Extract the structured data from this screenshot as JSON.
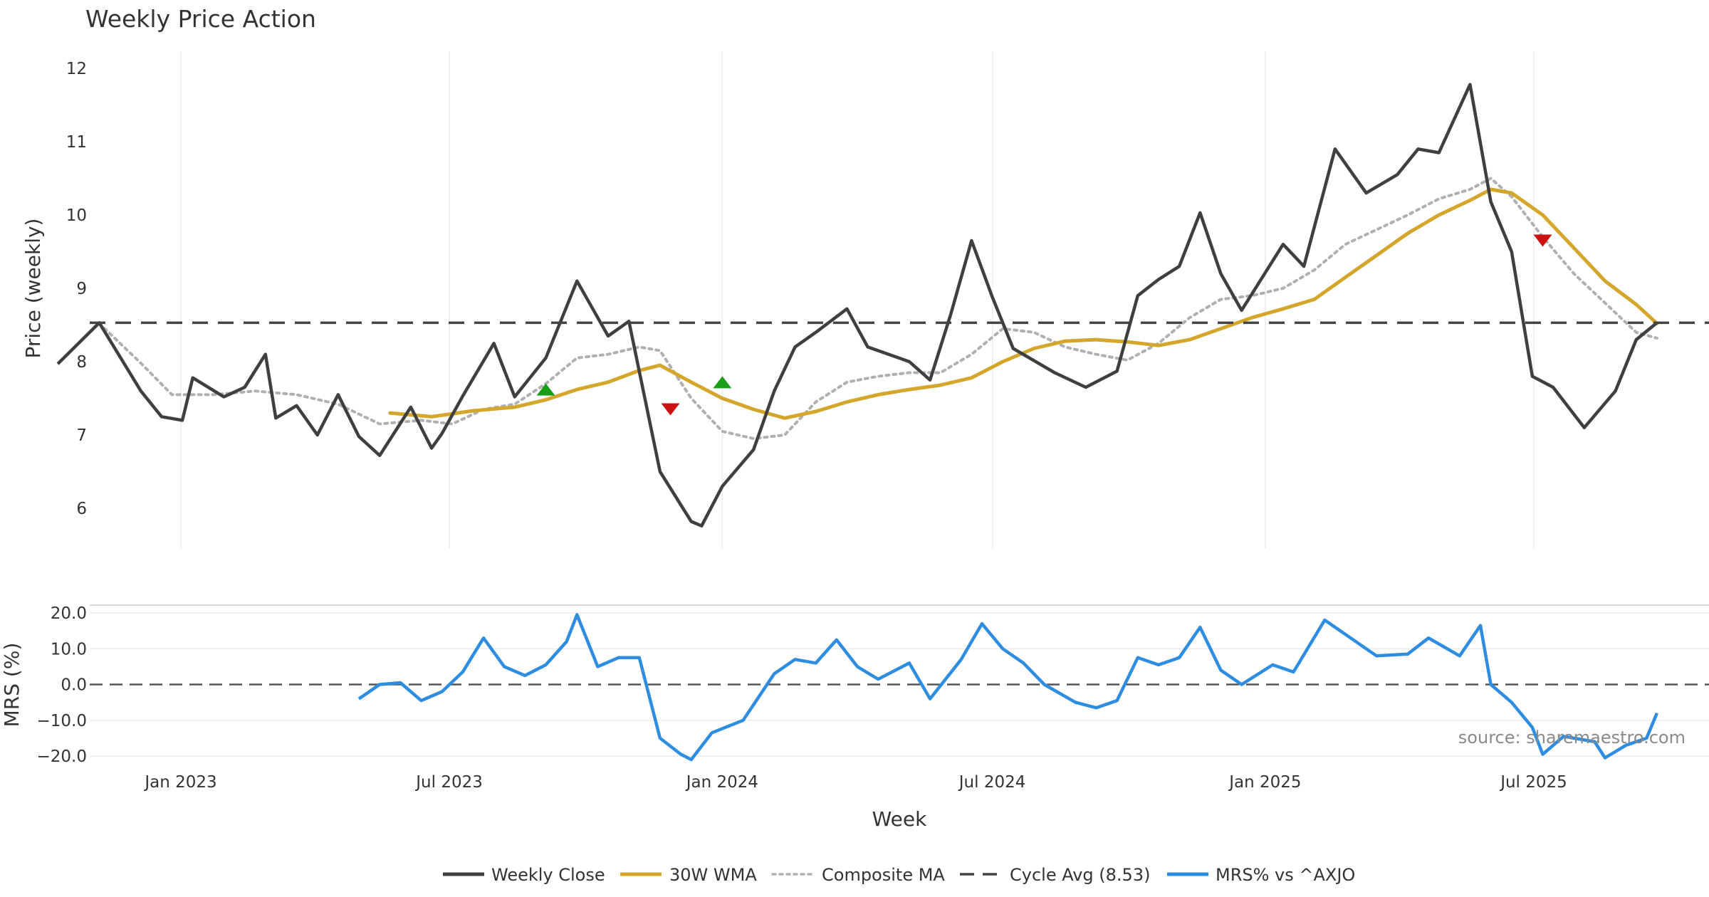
{
  "chart_data": {
    "title": "Weekly Price Action",
    "source": "source: sharemaestro.com",
    "xlabel": "Week",
    "x_ticks": [
      "Jan 2023",
      "Jul 2023",
      "Jan 2024",
      "Jul 2024",
      "Jan 2025",
      "Jul 2025"
    ],
    "x_range": [
      "2022-10-10",
      "2025-09-22"
    ],
    "price_panel": {
      "type": "line",
      "ylabel": "Price (weekly)",
      "ylim": [
        5.4,
        12.3
      ],
      "y_ticks": [
        6,
        7,
        8,
        9,
        10,
        11,
        12
      ],
      "series": [
        {
          "name": "Weekly Close",
          "color": "#3f3f3f",
          "points": [
            [
              "2022-10-10",
              7.97
            ],
            [
              "2022-11-07",
              8.53
            ],
            [
              "2022-12-05",
              7.6
            ],
            [
              "2022-12-19",
              7.25
            ],
            [
              "2023-01-02",
              7.2
            ],
            [
              "2023-01-09",
              7.78
            ],
            [
              "2023-01-30",
              7.52
            ],
            [
              "2023-02-13",
              7.65
            ],
            [
              "2023-02-27",
              8.1
            ],
            [
              "2023-03-06",
              7.23
            ],
            [
              "2023-03-20",
              7.4
            ],
            [
              "2023-04-03",
              7.0
            ],
            [
              "2023-04-17",
              7.55
            ],
            [
              "2023-05-01",
              6.98
            ],
            [
              "2023-05-15",
              6.72
            ],
            [
              "2023-06-05",
              7.38
            ],
            [
              "2023-06-19",
              6.82
            ],
            [
              "2023-06-26",
              7.02
            ],
            [
              "2023-07-10",
              7.53
            ],
            [
              "2023-07-31",
              8.25
            ],
            [
              "2023-08-14",
              7.52
            ],
            [
              "2023-09-04",
              8.05
            ],
            [
              "2023-09-25",
              9.1
            ],
            [
              "2023-10-16",
              8.35
            ],
            [
              "2023-10-30",
              8.55
            ],
            [
              "2023-11-20",
              6.5
            ],
            [
              "2023-12-11",
              5.82
            ],
            [
              "2023-12-18",
              5.76
            ],
            [
              "2024-01-01",
              6.3
            ],
            [
              "2024-01-22",
              6.8
            ],
            [
              "2024-02-05",
              7.6
            ],
            [
              "2024-02-19",
              8.2
            ],
            [
              "2024-03-04",
              8.4
            ],
            [
              "2024-03-25",
              8.72
            ],
            [
              "2024-04-08",
              8.2
            ],
            [
              "2024-05-06",
              8.0
            ],
            [
              "2024-05-20",
              7.75
            ],
            [
              "2024-06-03",
              8.65
            ],
            [
              "2024-06-17",
              9.65
            ],
            [
              "2024-07-01",
              8.88
            ],
            [
              "2024-07-15",
              8.18
            ],
            [
              "2024-08-12",
              7.85
            ],
            [
              "2024-09-02",
              7.65
            ],
            [
              "2024-09-23",
              7.87
            ],
            [
              "2024-10-07",
              8.9
            ],
            [
              "2024-10-21",
              9.12
            ],
            [
              "2024-11-04",
              9.3
            ],
            [
              "2024-11-18",
              10.03
            ],
            [
              "2024-12-02",
              9.2
            ],
            [
              "2024-12-16",
              8.7
            ],
            [
              "2025-01-13",
              9.6
            ],
            [
              "2025-01-27",
              9.3
            ],
            [
              "2025-02-17",
              10.9
            ],
            [
              "2025-03-10",
              10.3
            ],
            [
              "2025-03-31",
              10.55
            ],
            [
              "2025-04-14",
              10.9
            ],
            [
              "2025-04-28",
              10.85
            ],
            [
              "2025-05-19",
              11.78
            ],
            [
              "2025-06-02",
              10.18
            ],
            [
              "2025-06-16",
              9.5
            ],
            [
              "2025-06-30",
              7.8
            ],
            [
              "2025-07-14",
              7.65
            ],
            [
              "2025-08-04",
              7.1
            ],
            [
              "2025-08-25",
              7.6
            ],
            [
              "2025-09-08",
              8.3
            ],
            [
              "2025-09-22",
              8.53
            ]
          ]
        },
        {
          "name": "30W WMA",
          "color": "#d4a72c",
          "points": [
            [
              "2023-05-22",
              7.3
            ],
            [
              "2023-06-19",
              7.25
            ],
            [
              "2023-07-17",
              7.33
            ],
            [
              "2023-08-14",
              7.38
            ],
            [
              "2023-09-04",
              7.48
            ],
            [
              "2023-09-25",
              7.62
            ],
            [
              "2023-10-16",
              7.72
            ],
            [
              "2023-11-06",
              7.88
            ],
            [
              "2023-11-20",
              7.95
            ],
            [
              "2023-12-11",
              7.72
            ],
            [
              "2024-01-01",
              7.5
            ],
            [
              "2024-01-22",
              7.35
            ],
            [
              "2024-02-12",
              7.23
            ],
            [
              "2024-03-04",
              7.32
            ],
            [
              "2024-03-25",
              7.45
            ],
            [
              "2024-04-15",
              7.55
            ],
            [
              "2024-05-06",
              7.62
            ],
            [
              "2024-05-27",
              7.68
            ],
            [
              "2024-06-17",
              7.78
            ],
            [
              "2024-07-08",
              8.0
            ],
            [
              "2024-07-29",
              8.18
            ],
            [
              "2024-08-19",
              8.28
            ],
            [
              "2024-09-09",
              8.3
            ],
            [
              "2024-09-30",
              8.27
            ],
            [
              "2024-10-21",
              8.22
            ],
            [
              "2024-11-11",
              8.3
            ],
            [
              "2024-12-02",
              8.45
            ],
            [
              "2024-12-23",
              8.6
            ],
            [
              "2025-01-13",
              8.72
            ],
            [
              "2025-02-03",
              8.85
            ],
            [
              "2025-02-24",
              9.15
            ],
            [
              "2025-03-17",
              9.45
            ],
            [
              "2025-04-07",
              9.75
            ],
            [
              "2025-04-28",
              10.0
            ],
            [
              "2025-05-19",
              10.2
            ],
            [
              "2025-06-02",
              10.35
            ],
            [
              "2025-06-16",
              10.3
            ],
            [
              "2025-07-07",
              10.0
            ],
            [
              "2025-07-28",
              9.55
            ],
            [
              "2025-08-18",
              9.1
            ],
            [
              "2025-09-08",
              8.78
            ],
            [
              "2025-09-22",
              8.52
            ]
          ]
        },
        {
          "name": "Composite MA",
          "color": "#b0b0b0",
          "points": [
            [
              "2022-11-07",
              8.52
            ],
            [
              "2022-12-05",
              7.98
            ],
            [
              "2022-12-26",
              7.55
            ],
            [
              "2023-01-23",
              7.55
            ],
            [
              "2023-02-20",
              7.6
            ],
            [
              "2023-03-20",
              7.55
            ],
            [
              "2023-04-17",
              7.42
            ],
            [
              "2023-05-15",
              7.15
            ],
            [
              "2023-06-12",
              7.2
            ],
            [
              "2023-07-03",
              7.15
            ],
            [
              "2023-07-24",
              7.35
            ],
            [
              "2023-08-14",
              7.42
            ],
            [
              "2023-09-04",
              7.7
            ],
            [
              "2023-09-25",
              8.05
            ],
            [
              "2023-10-16",
              8.1
            ],
            [
              "2023-11-06",
              8.2
            ],
            [
              "2023-11-20",
              8.15
            ],
            [
              "2023-12-11",
              7.5
            ],
            [
              "2024-01-01",
              7.05
            ],
            [
              "2024-01-22",
              6.95
            ],
            [
              "2024-02-12",
              7.0
            ],
            [
              "2024-03-04",
              7.45
            ],
            [
              "2024-03-25",
              7.72
            ],
            [
              "2024-04-15",
              7.8
            ],
            [
              "2024-05-06",
              7.85
            ],
            [
              "2024-05-27",
              7.85
            ],
            [
              "2024-06-17",
              8.1
            ],
            [
              "2024-07-08",
              8.45
            ],
            [
              "2024-07-29",
              8.4
            ],
            [
              "2024-08-19",
              8.2
            ],
            [
              "2024-09-09",
              8.1
            ],
            [
              "2024-09-30",
              8.02
            ],
            [
              "2024-10-21",
              8.25
            ],
            [
              "2024-11-11",
              8.6
            ],
            [
              "2024-12-02",
              8.85
            ],
            [
              "2024-12-23",
              8.9
            ],
            [
              "2025-01-13",
              9.0
            ],
            [
              "2025-02-03",
              9.25
            ],
            [
              "2025-02-24",
              9.6
            ],
            [
              "2025-03-17",
              9.8
            ],
            [
              "2025-04-07",
              10.0
            ],
            [
              "2025-04-28",
              10.22
            ],
            [
              "2025-05-19",
              10.35
            ],
            [
              "2025-06-02",
              10.5
            ],
            [
              "2025-06-16",
              10.25
            ],
            [
              "2025-07-07",
              9.7
            ],
            [
              "2025-07-28",
              9.2
            ],
            [
              "2025-08-18",
              8.8
            ],
            [
              "2025-09-08",
              8.4
            ],
            [
              "2025-09-22",
              8.32
            ]
          ]
        },
        {
          "name": "Cycle Avg (8.53)",
          "color": "#444444",
          "value": 8.53
        }
      ],
      "signals": [
        {
          "type": "buy",
          "date": "2023-09-04",
          "price": 7.62,
          "color": "#1a9e1a"
        },
        {
          "type": "sell",
          "date": "2023-11-27",
          "price": 7.35,
          "color": "#cc1111"
        },
        {
          "type": "buy",
          "date": "2024-01-01",
          "price": 7.72,
          "color": "#1a9e1a"
        },
        {
          "type": "sell",
          "date": "2025-07-07",
          "price": 9.65,
          "color": "#cc1111"
        }
      ]
    },
    "mrs_panel": {
      "type": "line",
      "ylabel": "MRS (%)",
      "ylim": [
        -21,
        21
      ],
      "y_ticks": [
        20,
        10,
        0,
        -10,
        -20
      ],
      "y_tick_labels": [
        "20.0",
        "10.0",
        "0.0",
        "−10.0",
        "−20.0"
      ],
      "zero_line": 0,
      "series": [
        {
          "name": "MRS% vs ^AXJO",
          "color": "#2e8de0",
          "points": [
            [
              "2023-05-01",
              -4.0
            ],
            [
              "2023-05-15",
              0.0
            ],
            [
              "2023-05-29",
              0.5
            ],
            [
              "2023-06-12",
              -4.5
            ],
            [
              "2023-06-26",
              -2.0
            ],
            [
              "2023-07-10",
              3.5
            ],
            [
              "2023-07-24",
              13.0
            ],
            [
              "2023-08-07",
              5.0
            ],
            [
              "2023-08-21",
              2.5
            ],
            [
              "2023-09-04",
              5.5
            ],
            [
              "2023-09-18",
              12.0
            ],
            [
              "2023-09-25",
              19.5
            ],
            [
              "2023-10-09",
              5.0
            ],
            [
              "2023-10-23",
              7.5
            ],
            [
              "2023-11-06",
              7.5
            ],
            [
              "2023-11-20",
              -15.0
            ],
            [
              "2023-12-04",
              -19.5
            ],
            [
              "2023-12-11",
              -21.0
            ],
            [
              "2023-12-25",
              -13.5
            ],
            [
              "2024-01-15",
              -10.0
            ],
            [
              "2024-02-05",
              3.0
            ],
            [
              "2024-02-19",
              7.0
            ],
            [
              "2024-03-04",
              6.0
            ],
            [
              "2024-03-18",
              12.5
            ],
            [
              "2024-04-01",
              5.0
            ],
            [
              "2024-04-15",
              1.5
            ],
            [
              "2024-05-06",
              6.0
            ],
            [
              "2024-05-20",
              -4.0
            ],
            [
              "2024-06-10",
              7.0
            ],
            [
              "2024-06-24",
              17.0
            ],
            [
              "2024-07-08",
              10.0
            ],
            [
              "2024-07-22",
              6.0
            ],
            [
              "2024-08-05",
              0.0
            ],
            [
              "2024-08-26",
              -5.0
            ],
            [
              "2024-09-09",
              -6.5
            ],
            [
              "2024-09-23",
              -4.5
            ],
            [
              "2024-10-07",
              7.5
            ],
            [
              "2024-10-21",
              5.5
            ],
            [
              "2024-11-04",
              7.5
            ],
            [
              "2024-11-18",
              16.0
            ],
            [
              "2024-12-02",
              4.0
            ],
            [
              "2024-12-16",
              0.0
            ],
            [
              "2025-01-06",
              5.5
            ],
            [
              "2025-01-20",
              3.5
            ],
            [
              "2025-02-10",
              18.0
            ],
            [
              "2025-03-03",
              12.0
            ],
            [
              "2025-03-17",
              8.0
            ],
            [
              "2025-04-07",
              8.5
            ],
            [
              "2025-04-21",
              13.0
            ],
            [
              "2025-05-12",
              8.0
            ],
            [
              "2025-05-26",
              16.5
            ],
            [
              "2025-06-02",
              0.0
            ],
            [
              "2025-06-16",
              -5.0
            ],
            [
              "2025-06-30",
              -12.0
            ],
            [
              "2025-07-07",
              -19.5
            ],
            [
              "2025-07-21",
              -14.5
            ],
            [
              "2025-08-11",
              -16.0
            ],
            [
              "2025-08-18",
              -20.5
            ],
            [
              "2025-09-01",
              -17.0
            ],
            [
              "2025-09-15",
              -15.0
            ],
            [
              "2025-09-22",
              -8.0
            ]
          ]
        }
      ]
    },
    "legend": {
      "position": "bottom-center",
      "items": [
        {
          "label": "Weekly Close",
          "color": "#3f3f3f",
          "style": "solid"
        },
        {
          "label": "30W WMA",
          "color": "#d4a72c",
          "style": "solid"
        },
        {
          "label": "Composite MA",
          "color": "#b0b0b0",
          "style": "dotted"
        },
        {
          "label": "Cycle Avg (8.53)",
          "color": "#444444",
          "style": "dashed"
        },
        {
          "label": "MRS% vs ^AXJO",
          "color": "#2e8de0",
          "style": "solid"
        }
      ]
    },
    "grid": {
      "vertical": true,
      "horizontal": false
    }
  }
}
